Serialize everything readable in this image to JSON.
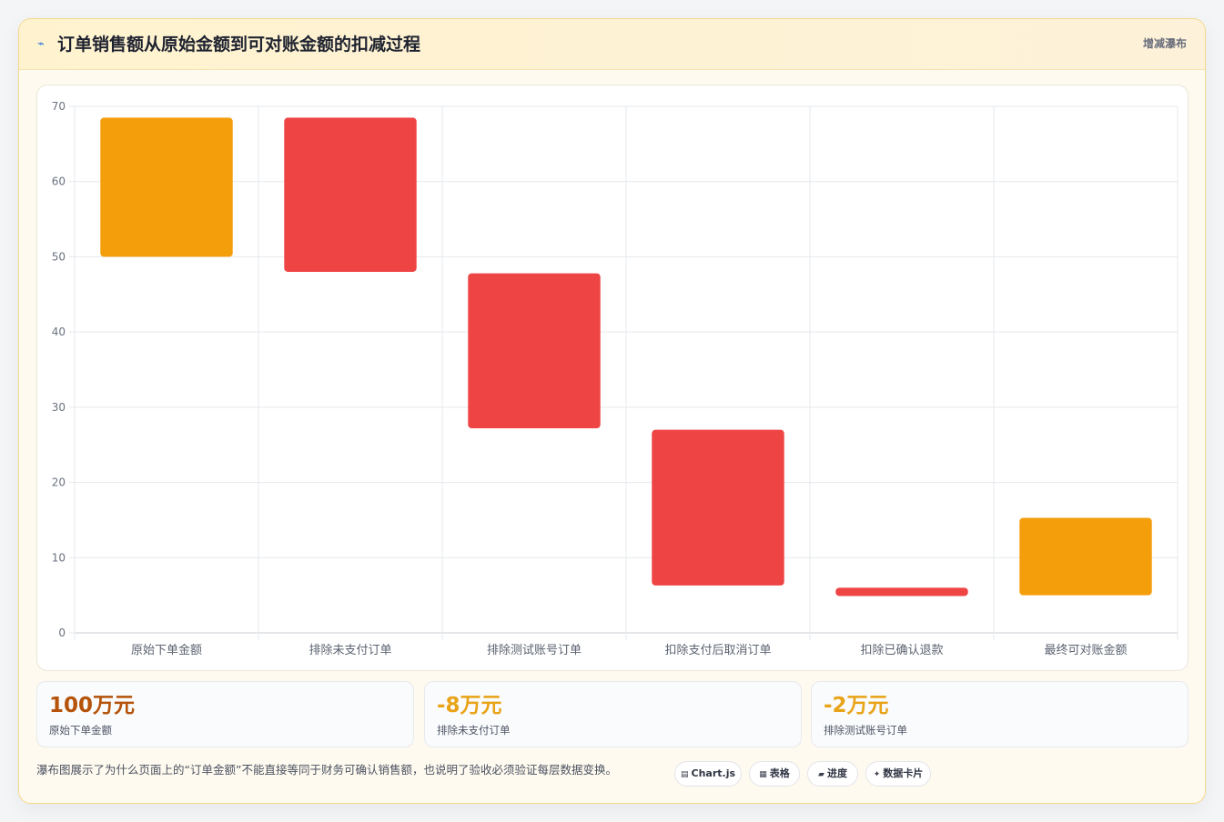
{
  "header": {
    "icon": "lightning-icon",
    "title": "订单销售额从原始金额到可对账金额的扣减过程",
    "tag": "增减瀑布"
  },
  "colors": {
    "total": "#f59e0b",
    "decrease": "#ef4444",
    "grid": "#e6e8ec",
    "card_bg": "#fffaef",
    "stat_primary": "#b45309",
    "stat_secondary": "#e8a317"
  },
  "chart_data": {
    "type": "bar",
    "subtype": "floating-waterfall",
    "categories": [
      "原始下单金额",
      "排除未支付订单",
      "排除测试账号订单",
      "扣除支付后取消订单",
      "扣除已确认退款",
      "最终可对账金额"
    ],
    "ranges": [
      [
        50,
        68.5
      ],
      [
        48,
        68.5
      ],
      [
        27.2,
        47.8
      ],
      [
        6.3,
        27
      ],
      [
        4.9,
        6
      ],
      [
        5,
        15.3
      ]
    ],
    "kinds": [
      "total",
      "decrease",
      "decrease",
      "decrease",
      "decrease",
      "total"
    ],
    "y_ticks": [
      "0",
      "10",
      "20",
      "30",
      "40",
      "50",
      "60",
      "70"
    ],
    "ylim": [
      0,
      70
    ],
    "grid": true,
    "legend": "none"
  },
  "stats": [
    {
      "value": "100万元",
      "label": "原始下单金额",
      "tone": "primary"
    },
    {
      "value": "-8万元",
      "label": "排除未支付订单",
      "tone": "secondary"
    },
    {
      "value": "-2万元",
      "label": "排除测试账号订单",
      "tone": "secondary"
    }
  ],
  "footer": {
    "note": "瀑布图展示了为什么页面上的“订单金额”不能直接等同于财务可确认销售额，也说明了验收必须验证每层数据变换。",
    "chips": [
      {
        "icon": "chart-icon",
        "glyph": "▤",
        "label": "Chart.js"
      },
      {
        "icon": "table-icon",
        "glyph": "▦",
        "label": "表格"
      },
      {
        "icon": "progress-icon",
        "glyph": "▰",
        "label": "进度"
      },
      {
        "icon": "sparkle-icon",
        "glyph": "✦",
        "label": "数据卡片"
      }
    ]
  }
}
